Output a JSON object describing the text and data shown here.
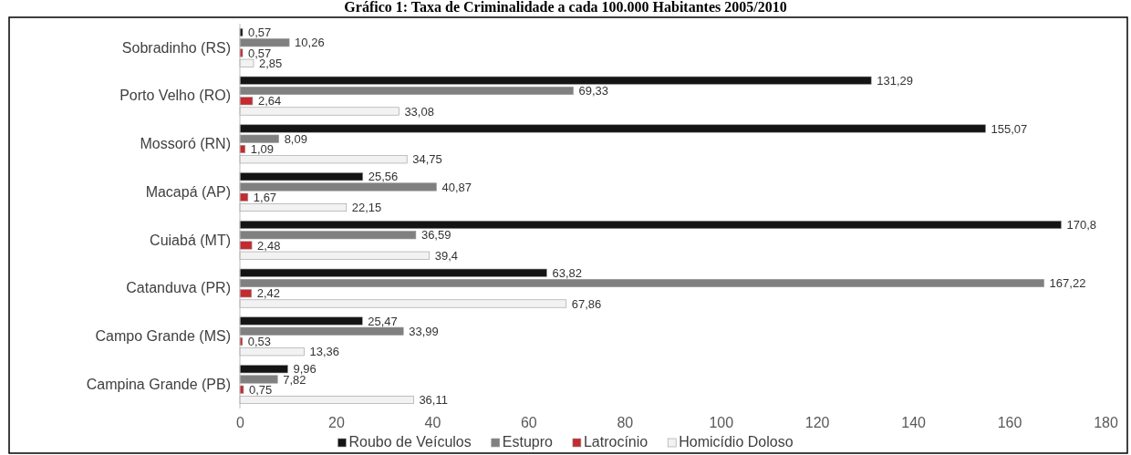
{
  "chart_data": {
    "type": "bar",
    "orientation": "horizontal",
    "title": "Gráfico 1: Taxa de Criminalidade a cada 100.000 Habitantes 2005/2010",
    "categories": [
      "Sobradinho (RS)",
      "Porto Velho (RO)",
      "Mossoró (RN)",
      "Macapá (AP)",
      "Cuiabá (MT)",
      "Catanduva (PR)",
      "Campo Grande (MS)",
      "Campina Grande (PB)"
    ],
    "series": [
      {
        "name": "Roubo de Veículos",
        "color": "#141414",
        "values": [
          0.57,
          131.29,
          155.07,
          25.56,
          170.8,
          63.82,
          25.47,
          9.96
        ],
        "value_labels": [
          "0,57",
          "131,29",
          "155,07",
          "25,56",
          "170,8",
          "63,82",
          "25,47",
          "9,96"
        ]
      },
      {
        "name": "Estupro",
        "color": "#808080",
        "values": [
          10.26,
          69.33,
          8.09,
          40.87,
          36.59,
          167.22,
          33.99,
          7.82
        ],
        "value_labels": [
          "10,26",
          "69,33",
          "8,09",
          "40,87",
          "36,59",
          "167,22",
          "33,99",
          "7,82"
        ]
      },
      {
        "name": "Latrocínio",
        "color": "#c42a2f",
        "values": [
          0.57,
          2.64,
          1.09,
          1.67,
          2.48,
          2.42,
          0.53,
          0.75
        ],
        "value_labels": [
          "0,57",
          "2,64",
          "1,09",
          "1,67",
          "2,48",
          "2,42",
          "0,53",
          "0,75"
        ]
      },
      {
        "name": "Homicídio Doloso",
        "color": "#f2f2f2",
        "values": [
          2.85,
          33.08,
          34.75,
          22.15,
          39.4,
          67.86,
          13.36,
          36.11
        ],
        "value_labels": [
          "2,85",
          "33,08",
          "34,75",
          "22,15",
          "39,4",
          "67,86",
          "13,36",
          "36,11"
        ]
      }
    ],
    "xlim": [
      0,
      180
    ],
    "xticks": [
      0,
      20,
      40,
      60,
      80,
      100,
      120,
      140,
      160,
      180
    ],
    "legend": "bottom"
  }
}
